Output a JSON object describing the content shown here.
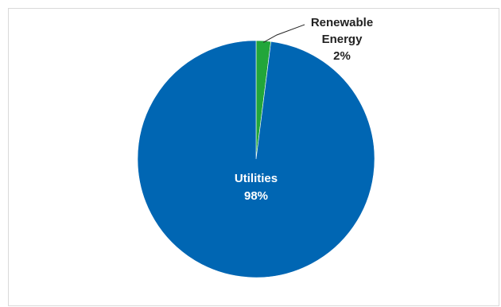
{
  "chart_data": {
    "type": "pie",
    "title": "",
    "slices": [
      {
        "category": "Utilities",
        "value": 98,
        "percent_label": "98%",
        "color": "#0066b3"
      },
      {
        "category": "Renewable Energy",
        "value": 2,
        "percent_label": "2%",
        "color": "#22a63a"
      }
    ],
    "legend": "none",
    "data_labels": "category and percent",
    "colors": {
      "utilities": "#0066b3",
      "renewable": "#22a63a",
      "utilities_label": "#ffffff",
      "renewable_label": "#222222",
      "leader_line": "#222222"
    }
  }
}
